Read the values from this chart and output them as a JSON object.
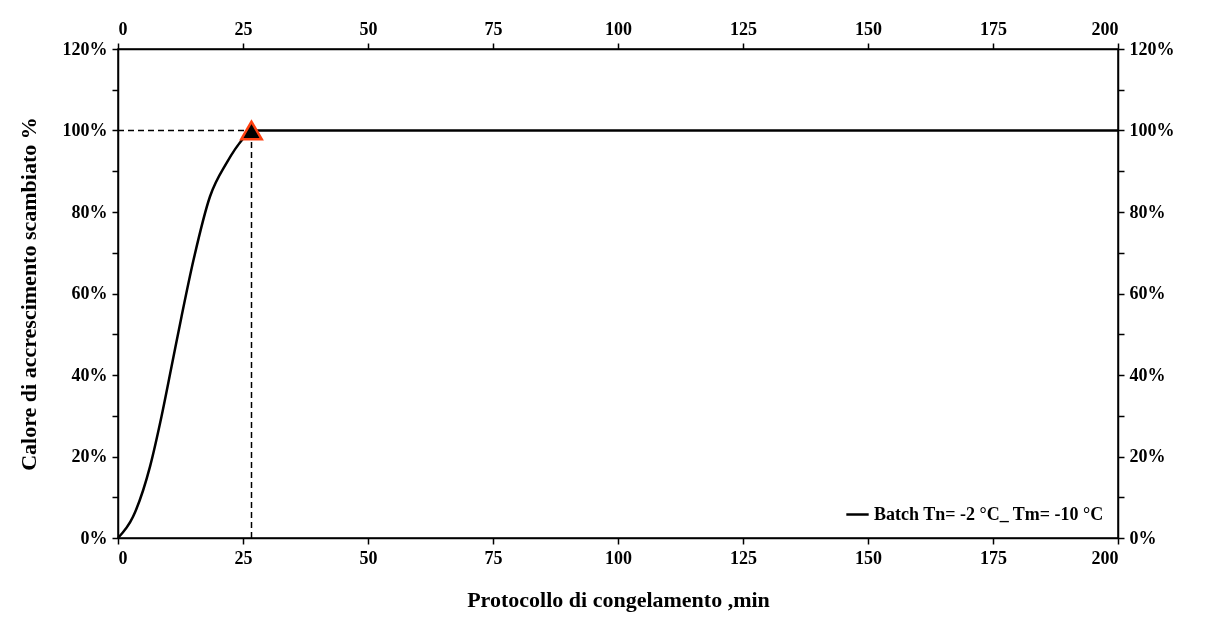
{
  "chart_data": {
    "type": "line",
    "xlabel": "Protocollo  di congelamento  ,min",
    "ylabel": "Calore  di accrescimento scambiato %",
    "series": [
      {
        "name": "Batch Tn= -2 °C_ Tm= -10 °C",
        "color": "#000000",
        "marker": "none",
        "line_style": "solid",
        "x": [
          0,
          3.0,
          6.4,
          8.7,
          10.7,
          12.7,
          15.1,
          18.4,
          21.7,
          25.1,
          26.7,
          200
        ],
        "values": [
          0,
          5.2,
          17.5,
          29.8,
          42,
          54.3,
          68.2,
          83.8,
          92,
          98.1,
          100,
          100
        ]
      },
      {
        "type": "scatter",
        "color": "#000000",
        "marker": "triangle",
        "x": [
          26.7
        ],
        "values": [
          100
        ]
      }
    ],
    "ref_lines": [
      {
        "axis": "x",
        "value": 26.7,
        "line_style": "dashed",
        "color": "#000000"
      },
      {
        "axis": "y",
        "value": 100,
        "line_style": "dashed",
        "color": "#000000"
      }
    ],
    "xlim": [
      0,
      200
    ],
    "xticks": [
      0,
      25,
      50,
      75,
      100,
      125,
      150,
      175,
      200
    ],
    "x2lim": [
      0,
      200
    ],
    "x2ticks": [
      0,
      25,
      50,
      75,
      100,
      125,
      150,
      175,
      200
    ],
    "ylim": [
      0,
      120
    ],
    "yticks": [
      {
        "value": 0,
        "label": "0%"
      },
      {
        "value": 10,
        "label": null
      },
      {
        "value": 20,
        "label": "20%"
      },
      {
        "value": 30,
        "label": null
      },
      {
        "value": 40,
        "label": "40%"
      },
      {
        "value": 50,
        "label": null
      },
      {
        "value": 60,
        "label": "60%"
      },
      {
        "value": 70,
        "label": null
      },
      {
        "value": 80,
        "label": "80%"
      },
      {
        "value": 90,
        "label": null
      },
      {
        "value": 100,
        "label": "100%"
      },
      {
        "value": 110,
        "label": null
      },
      {
        "value": 120,
        "label": "120%"
      }
    ],
    "y2lim": [
      0,
      120
    ],
    "y2ticks": [
      {
        "value": 0,
        "label": "0%"
      },
      {
        "value": 10,
        "label": null
      },
      {
        "value": 20,
        "label": "20%"
      },
      {
        "value": 30,
        "label": null
      },
      {
        "value": 40,
        "label": "40%"
      },
      {
        "value": 50,
        "label": null
      },
      {
        "value": 60,
        "label": "60%"
      },
      {
        "value": 70,
        "label": null
      },
      {
        "value": 80,
        "label": "80%"
      },
      {
        "value": 90,
        "label": null
      },
      {
        "value": 100,
        "label": "100%"
      },
      {
        "value": 110,
        "label": null
      },
      {
        "value": 120,
        "label": "120%"
      }
    ],
    "grid": false,
    "legend": "bottom right"
  }
}
